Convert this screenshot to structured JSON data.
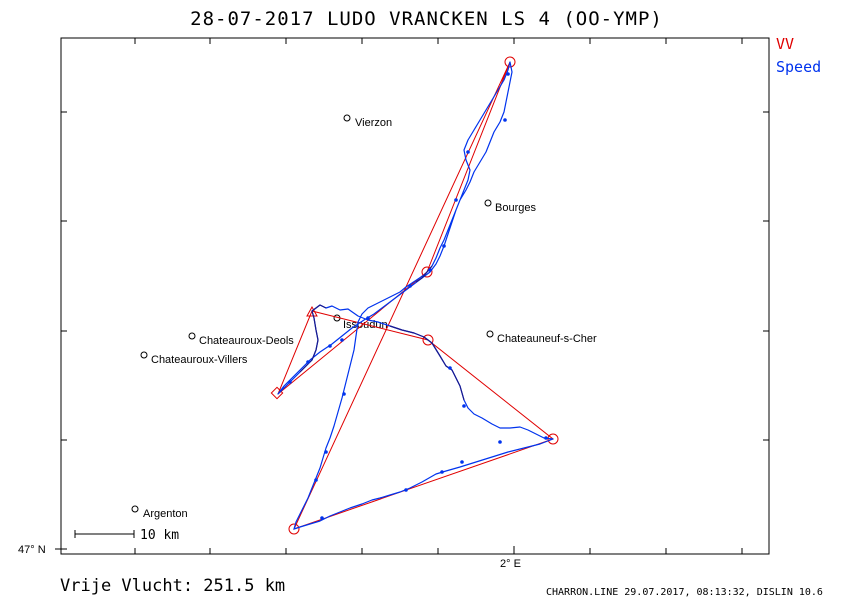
{
  "header": {
    "title": "28-07-2017   LUDO VRANCKEN   LS 4 (OO-YMP)"
  },
  "legend": {
    "vv_label": "VV",
    "speed_label": "Speed",
    "vv_color": "#e00000",
    "speed_color": "#0033ee"
  },
  "map": {
    "towns": [
      {
        "name": "Vierzon"
      },
      {
        "name": "Bourges"
      },
      {
        "name": "Issoudun"
      },
      {
        "name": "Chateauroux-Deols"
      },
      {
        "name": "Chateauneuf-s-Cher"
      },
      {
        "name": "Chateauroux-Villers"
      },
      {
        "name": "Argenton"
      }
    ],
    "scale_label": "10 km",
    "lat_label": "47° N",
    "lon_label": "2° E"
  },
  "footer": {
    "distance": "Vrije Vlucht:  251.5 km",
    "credit": "CHARRON.LINE 29.07.2017, 08:13:32, DISLIN 10.6"
  }
}
